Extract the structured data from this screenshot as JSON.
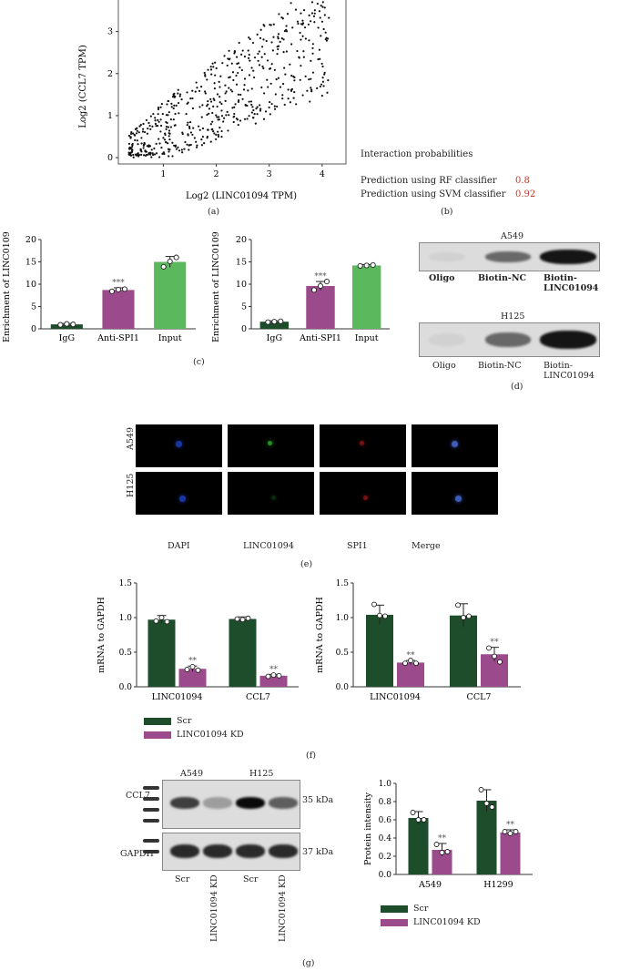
{
  "panel_a": {
    "letter": "(a)",
    "chart_data": {
      "type": "scatter",
      "xlabel": "Log2 (LINC01094 TPM)",
      "ylabel": "Log2 (CCL7 TPM)",
      "xticks": [
        1,
        2,
        3,
        4
      ],
      "yticks": [
        0,
        1,
        2,
        3
      ],
      "xlim": [
        0.15,
        4.45
      ],
      "ylim": [
        -0.15,
        3.75
      ]
    }
  },
  "panel_b": {
    "letter": "(b)",
    "title": "Interaction probabilities",
    "rows": [
      {
        "label": "Prediction using RF classifier",
        "value": "0.8"
      },
      {
        "label": "Prediction using SVM classifier",
        "value": "0.92"
      }
    ]
  },
  "panel_c": {
    "letter": "(c)",
    "charts": [
      {
        "type": "bar",
        "ylabel": "Enrichment of LINC01094",
        "ylim": [
          0,
          20
        ],
        "yticks": [
          0,
          5,
          10,
          15,
          20
        ],
        "categories": [
          "IgG",
          "Anti-SPI1",
          "Input"
        ],
        "values": [
          1.0,
          8.7,
          15.0
        ],
        "errors": [
          0.2,
          0.5,
          1.2
        ],
        "points": [
          [
            0.9,
            1.1,
            1.0
          ],
          [
            8.4,
            8.8,
            8.9
          ],
          [
            13.9,
            15.1,
            16.0
          ]
        ],
        "annotations": [
          "",
          "***",
          ""
        ]
      },
      {
        "type": "bar",
        "ylabel": "Enrichment of LINC01094",
        "ylim": [
          0,
          20
        ],
        "yticks": [
          0,
          5,
          10,
          15,
          20
        ],
        "categories": [
          "IgG",
          "Anti-SPI1",
          "Input"
        ],
        "values": [
          1.6,
          9.6,
          14.2
        ],
        "errors": [
          0.2,
          1.0,
          0.2
        ],
        "points": [
          [
            1.5,
            1.6,
            1.7
          ],
          [
            8.7,
            9.6,
            10.6
          ],
          [
            14.1,
            14.2,
            14.3
          ]
        ],
        "annotations": [
          "",
          "***",
          ""
        ]
      }
    ]
  },
  "panel_d": {
    "letter": "(d)",
    "blots": [
      {
        "title": "A549",
        "lanes": [
          "Oligo",
          "Biotin-NC",
          "Biotin-LINC01094"
        ],
        "intensity": [
          0.05,
          0.55,
          0.95
        ]
      },
      {
        "title": "H125",
        "lanes": [
          "Oligo",
          "Biotin-NC",
          "Biotin-LINC01094"
        ],
        "intensity": [
          0.05,
          0.55,
          0.95
        ]
      }
    ]
  },
  "panel_e": {
    "letter": "(e)",
    "rows": [
      "A549",
      "H125"
    ],
    "columns": [
      "DAPI",
      "LINC01094",
      "SPI1",
      "Merge"
    ]
  },
  "panel_f": {
    "letter": "(f)",
    "legend": [
      "Scr",
      "LINC01094 KD"
    ],
    "charts": [
      {
        "type": "bar",
        "ylabel": "mRNA to GAPDH",
        "ylim": [
          0,
          1.5
        ],
        "yticks": [
          "0.0",
          "0.5",
          "1.0",
          "1.5"
        ],
        "categories": [
          "LINC01094",
          "CCL7"
        ],
        "series": [
          {
            "name": "Scr",
            "values": [
              0.97,
              0.98
            ],
            "errors": [
              0.06,
              0.03
            ],
            "points": [
              [
                0.95,
                1.0,
                0.94
              ],
              [
                0.98,
                0.97,
                0.99
              ]
            ]
          },
          {
            "name": "LINC01094 KD",
            "values": [
              0.26,
              0.16
            ],
            "errors": [
              0.04,
              0.02
            ],
            "points": [
              [
                0.25,
                0.29,
                0.24
              ],
              [
                0.15,
                0.17,
                0.16
              ]
            ]
          }
        ],
        "annotations": [
          "**",
          "**"
        ]
      },
      {
        "type": "bar",
        "ylabel": "mRNA to GAPDH",
        "ylim": [
          0,
          1.5
        ],
        "yticks": [
          "0.0",
          "0.5",
          "1.0",
          "1.5"
        ],
        "categories": [
          "LINC01094",
          "CCL7"
        ],
        "series": [
          {
            "name": "Scr",
            "values": [
              1.04,
              1.03
            ],
            "errors": [
              0.14,
              0.17
            ],
            "points": [
              [
                1.19,
                1.03,
                1.02
              ],
              [
                1.18,
                1.0,
                1.02
              ]
            ]
          },
          {
            "name": "LINC01094 KD",
            "values": [
              0.35,
              0.47
            ],
            "errors": [
              0.03,
              0.1
            ],
            "points": [
              [
                0.34,
                0.38,
                0.34
              ],
              [
                0.56,
                0.44,
                0.36
              ]
            ]
          }
        ],
        "annotations": [
          "**",
          "**"
        ]
      }
    ]
  },
  "panel_g": {
    "letter": "(g)",
    "blot": {
      "groups": [
        "A549",
        "H125"
      ],
      "rows": [
        {
          "label": "CCL7",
          "size": "35 kDa",
          "intensity": [
            0.75,
            0.3,
            1.0,
            0.6
          ]
        },
        {
          "label": "GAPDH",
          "size": "37 kDa",
          "intensity": [
            0.85,
            0.85,
            0.85,
            0.85
          ]
        }
      ],
      "lanes": [
        "Scr",
        "LINC01094 KD",
        "Scr",
        "LINC01094 KD"
      ]
    },
    "legend": [
      "Scr",
      "LINC01094 KD"
    ],
    "chart": {
      "type": "bar",
      "ylabel": "Protein intensity",
      "ylim": [
        0,
        1.0
      ],
      "yticks": [
        "0.0",
        "0.2",
        "0.4",
        "0.6",
        "0.8",
        "1.0"
      ],
      "categories": [
        "A549",
        "H1299"
      ],
      "series": [
        {
          "name": "Scr",
          "values": [
            0.62,
            0.81
          ],
          "errors": [
            0.07,
            0.12
          ],
          "points": [
            [
              0.68,
              0.6,
              0.6
            ],
            [
              0.93,
              0.78,
              0.74
            ]
          ]
        },
        {
          "name": "LINC01094 KD",
          "values": [
            0.27,
            0.46
          ],
          "errors": [
            0.07,
            0.03
          ],
          "points": [
            [
              0.33,
              0.24,
              0.25
            ],
            [
              0.47,
              0.45,
              0.47
            ]
          ]
        }
      ],
      "annotations": [
        "**",
        "**"
      ]
    }
  },
  "colors": {
    "dark_green": "#1e4d2b",
    "purple": "#9b4a8c",
    "green": "#5cb85c",
    "dark": "#1a1a1a"
  }
}
